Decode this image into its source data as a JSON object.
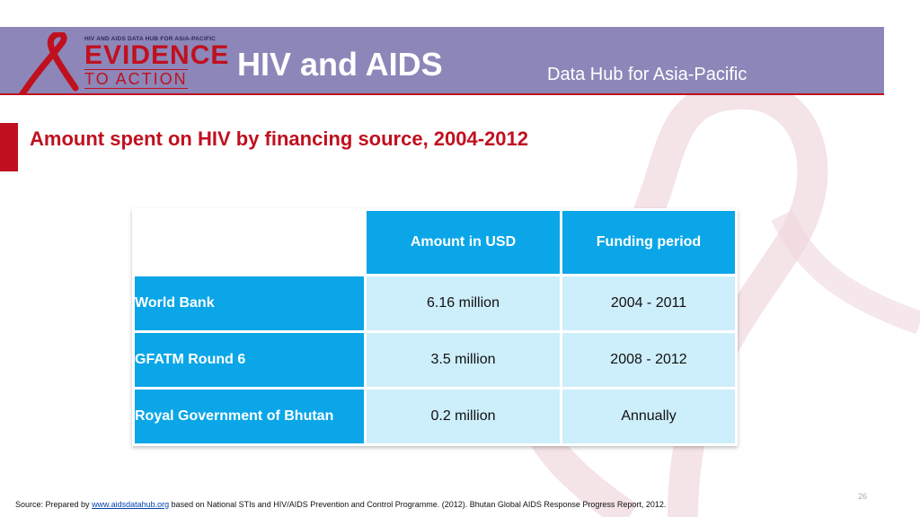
{
  "header": {
    "logo_small": "HIV AND AIDS DATA HUB FOR ASIA-PACIFIC",
    "logo_big": "EVIDENCE",
    "logo_sub": "TO ACTION",
    "title": "HIV and AIDS",
    "subtitle": "Data Hub for Asia-Pacific"
  },
  "slide": {
    "title": "Amount spent on HIV by financing source, 2004-2012",
    "page_number": "26"
  },
  "table": {
    "columns": [
      "",
      "Amount in USD",
      "Funding period"
    ],
    "rows": [
      [
        "World Bank",
        "6.16 million",
        "2004 - 2011"
      ],
      [
        "GFATM Round 6",
        "3.5 million",
        "2008 - 2012"
      ],
      [
        "Royal Government of Bhutan",
        "0.2 million",
        "Annually"
      ]
    ]
  },
  "source": {
    "prefix": "Source: Prepared by ",
    "link": "www.aidsdatahub.org",
    "suffix": " based on National STIs and HIV/AIDS Prevention and Control Programme. (2012). Bhutan Global AIDS Response Progress Report, 2012."
  },
  "colors": {
    "header_bg": "#8c87b8",
    "brand_red": "#c0101f",
    "table_header": "#0aa6e8",
    "table_cell": "#cdeefb"
  }
}
